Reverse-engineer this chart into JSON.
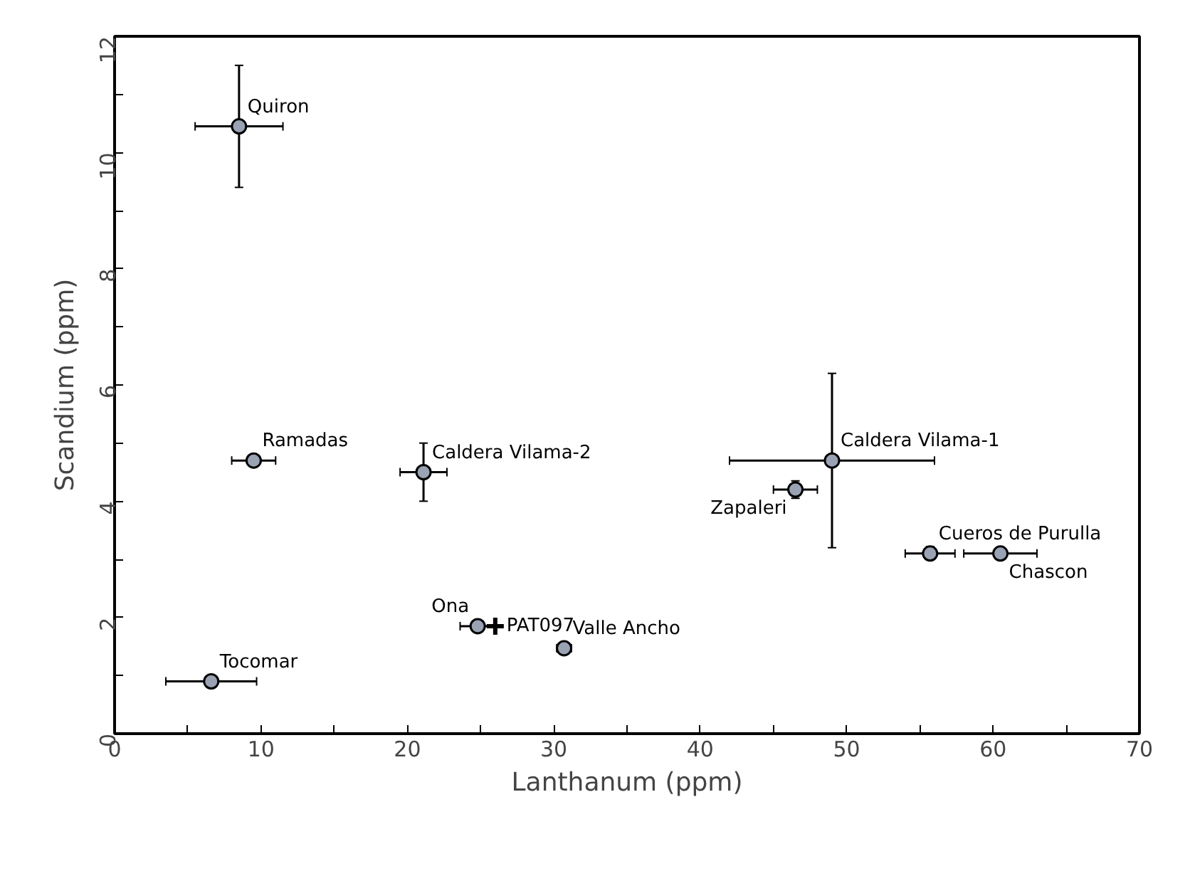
{
  "chart_data": {
    "type": "scatter",
    "xlabel": "Lanthanum (ppm)",
    "ylabel": "Scandium (ppm)",
    "xlim": [
      0,
      70
    ],
    "ylim": [
      0,
      12
    ],
    "xticks": [
      0,
      {
        "value": 5,
        "label": null
      },
      10,
      {
        "value": 15,
        "label": null
      },
      20,
      {
        "value": 25,
        "label": null
      },
      30,
      {
        "value": 35,
        "label": null
      },
      40,
      {
        "value": 45,
        "label": null
      },
      50,
      {
        "value": 55,
        "label": null
      },
      60,
      {
        "value": 65,
        "label": null
      },
      70
    ],
    "yticks": [
      0,
      {
        "value": 1,
        "label": null
      },
      2,
      {
        "value": 3,
        "label": null
      },
      4,
      {
        "value": 5,
        "label": null
      },
      6,
      {
        "value": 7,
        "label": null
      },
      8,
      {
        "value": 9,
        "label": null
      },
      10,
      {
        "value": 11,
        "label": null
      },
      12
    ],
    "grid": false,
    "legend": false,
    "marker": "circle",
    "series": [
      {
        "name": "Quiron",
        "color": "#9aa3b4",
        "x": [
          8.5
        ],
        "values": [
          10.45
        ],
        "xerrors": [
          [
            5.5,
            11.5
          ]
        ],
        "errors": [
          [
            9.4,
            11.5
          ]
        ]
      },
      {
        "name": "Ramadas",
        "color": "#9aa3b4",
        "x": [
          9.5
        ],
        "values": [
          4.7
        ],
        "xerrors": [
          [
            8,
            11
          ]
        ],
        "errors": [
          [
            4.6,
            4.8
          ]
        ]
      },
      {
        "name": "Caldera Vilama-2",
        "color": "#9aa3b4",
        "x": [
          21.1
        ],
        "values": [
          4.5
        ],
        "xerrors": [
          [
            19.5,
            22.7
          ]
        ],
        "errors": [
          [
            4.0,
            5.0
          ]
        ]
      },
      {
        "name": "Ona",
        "color": "#9aa3b4",
        "x": [
          24.8
        ],
        "values": [
          1.85
        ],
        "xerrors": [
          [
            23.6,
            26
          ]
        ],
        "errors": [
          [
            1.8,
            1.9
          ]
        ]
      },
      {
        "name": "Valle Ancho",
        "color": "#9aa3b4",
        "x": [
          30.7
        ],
        "values": [
          1.47
        ],
        "xerrors": [
          [
            30.2,
            31.2
          ]
        ],
        "errors": [
          [
            1.37,
            1.57
          ]
        ]
      },
      {
        "name": "Tocomar",
        "color": "#9aa3b4",
        "x": [
          6.6
        ],
        "values": [
          0.9
        ],
        "xerrors": [
          [
            3.5,
            9.7
          ]
        ],
        "errors": [
          [
            0.85,
            0.95
          ]
        ]
      },
      {
        "name": "Caldera Vilama-1",
        "color": "#9aa3b4",
        "x": [
          49
        ],
        "values": [
          4.7
        ],
        "xerrors": [
          [
            42,
            56
          ]
        ],
        "errors": [
          [
            3.2,
            6.2
          ]
        ]
      },
      {
        "name": "Zapaleri",
        "color": "#9aa3b4",
        "x": [
          46.5
        ],
        "values": [
          4.2
        ],
        "xerrors": [
          [
            45,
            48
          ]
        ],
        "errors": [
          [
            4.05,
            4.35
          ]
        ]
      },
      {
        "name": "Cueros de Purulla",
        "color": "#9aa3b4",
        "x": [
          55.7
        ],
        "values": [
          3.1
        ],
        "xerrors": [
          [
            54,
            57.4
          ]
        ],
        "errors": [
          [
            3.0,
            3.22
          ]
        ]
      },
      {
        "name": "Chascon",
        "color": "#9aa3b4",
        "x": [
          60.5
        ],
        "values": [
          3.1
        ],
        "xerrors": [
          [
            58,
            63
          ]
        ],
        "errors": [
          [
            3.0,
            3.2
          ]
        ]
      },
      {
        "name": "PAT097",
        "color": "#000000",
        "marker": "cross",
        "x": [
          26
        ],
        "values": [
          1.85
        ]
      }
    ]
  }
}
